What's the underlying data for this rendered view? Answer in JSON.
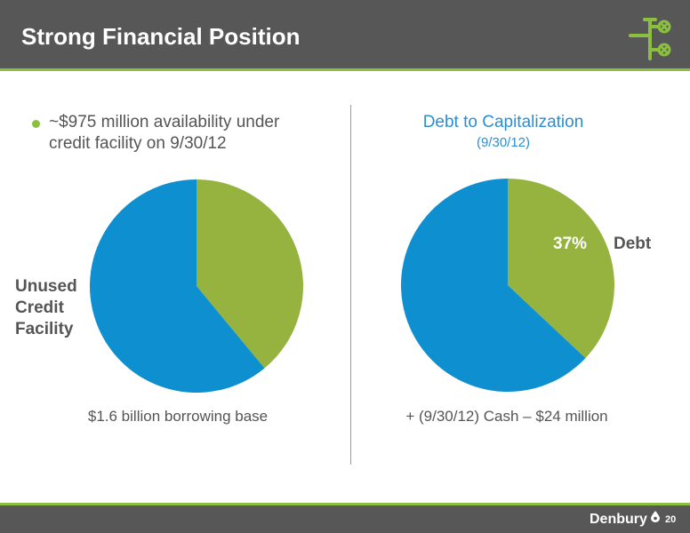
{
  "header": {
    "title": "Strong Financial Position",
    "logo_icon": "wellhead-valve-icon"
  },
  "left_panel": {
    "bullet": "~$975 million availability under credit facility on 9/30/12",
    "side_label": "Unused Credit Facility",
    "caption": "$1.6 billion borrowing base"
  },
  "right_panel": {
    "title": "Debt to Capitalization",
    "subtitle": "(9/30/12)",
    "slice_label": "Debt",
    "caption": "+ (9/30/12) Cash – $24 million"
  },
  "footer": {
    "brand": "Denbury",
    "brand_icon": "oil-drop-icon",
    "page_number": "20"
  },
  "colors": {
    "header_bg": "#575757",
    "accent_green": "#8bbf3f",
    "slice_green": "#95b33e",
    "slice_blue": "#0e8fd0",
    "text_gray": "#555555",
    "title_blue": "#2a8fcf"
  },
  "chart_data": [
    {
      "type": "pie",
      "slices": [
        {
          "label": "",
          "value": 39,
          "color": "#95b33e"
        },
        {
          "label": "Unused Credit Facility",
          "value": 61,
          "color": "#0e8fd0"
        }
      ]
    },
    {
      "type": "pie",
      "title": "Debt to Capitalization",
      "subtitle": "(9/30/12)",
      "slices": [
        {
          "label": "Debt",
          "value": 37,
          "display": "37%",
          "color": "#95b33e"
        },
        {
          "label": "",
          "value": 63,
          "color": "#0e8fd0"
        }
      ]
    }
  ]
}
